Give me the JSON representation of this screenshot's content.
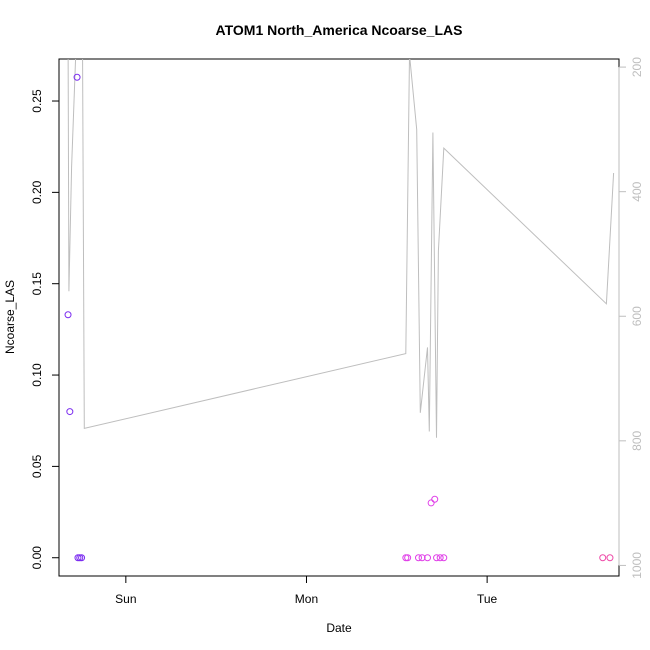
{
  "chart_data": {
    "type": "scatter",
    "title": "ATOM1 North_America Ncoarse_LAS",
    "xlabel": "Date",
    "ylabel": "Ncoarse_LAS",
    "x_unit": "days",
    "x_range": [
      -0.37,
      2.73
    ],
    "x_ticks": [
      {
        "v": 0,
        "label": "Sun"
      },
      {
        "v": 1,
        "label": "Mon"
      },
      {
        "v": 2,
        "label": "Tue"
      }
    ],
    "ylim": [
      -0.01,
      0.273
    ],
    "y_ticks": [
      0.0,
      0.05,
      0.1,
      0.15,
      0.2,
      0.25
    ],
    "y_tick_labels": [
      "0.00",
      "0.05",
      "0.10",
      "0.15",
      "0.20",
      "0.25"
    ],
    "right_axis": {
      "ylim_reversed": [
        1017,
        187
      ],
      "ticks": [
        200,
        400,
        600,
        800,
        1000
      ],
      "color": "#bebebe",
      "label": ""
    },
    "grid": false,
    "legend": "none",
    "series": [
      {
        "kind": "points",
        "color": "#7b2cf0",
        "points": [
          {
            "x": -0.32,
            "y": 0.133
          },
          {
            "x": -0.31,
            "y": 0.08
          },
          {
            "x": -0.27,
            "y": 0.263
          },
          {
            "x": -0.265,
            "y": 0.0
          },
          {
            "x": -0.255,
            "y": 0.0
          },
          {
            "x": -0.245,
            "y": 0.0
          }
        ]
      },
      {
        "kind": "points",
        "color": "#e040e8",
        "points": [
          {
            "x": 1.55,
            "y": 0.0
          },
          {
            "x": 1.56,
            "y": 0.0
          },
          {
            "x": 1.62,
            "y": 0.0
          },
          {
            "x": 1.64,
            "y": 0.0
          },
          {
            "x": 1.67,
            "y": 0.0
          },
          {
            "x": 1.69,
            "y": 0.03
          },
          {
            "x": 1.71,
            "y": 0.032
          },
          {
            "x": 1.72,
            "y": 0.0
          },
          {
            "x": 1.74,
            "y": 0.0
          },
          {
            "x": 1.76,
            "y": 0.0
          }
        ]
      },
      {
        "kind": "points",
        "color": "#ee4aa8",
        "points": [
          {
            "x": 2.64,
            "y": 0.0
          },
          {
            "x": 2.68,
            "y": 0.0
          }
        ]
      },
      {
        "kind": "line",
        "color": "#bebebe",
        "axis": "right",
        "points": [
          {
            "x": -0.32,
            "y": 120
          },
          {
            "x": -0.315,
            "y": 560
          },
          {
            "x": -0.3,
            "y": 360
          },
          {
            "x": -0.27,
            "y": 120
          },
          {
            "x": -0.24,
            "y": 160
          },
          {
            "x": -0.23,
            "y": 780
          },
          {
            "x": 1.55,
            "y": 660
          },
          {
            "x": 1.57,
            "y": 180
          },
          {
            "x": 1.61,
            "y": 300
          },
          {
            "x": 1.63,
            "y": 755
          },
          {
            "x": 1.67,
            "y": 650
          },
          {
            "x": 1.68,
            "y": 785
          },
          {
            "x": 1.7,
            "y": 305
          },
          {
            "x": 1.72,
            "y": 795
          },
          {
            "x": 1.73,
            "y": 495
          },
          {
            "x": 1.76,
            "y": 330
          },
          {
            "x": 2.66,
            "y": 580
          },
          {
            "x": 2.7,
            "y": 370
          }
        ]
      }
    ]
  }
}
